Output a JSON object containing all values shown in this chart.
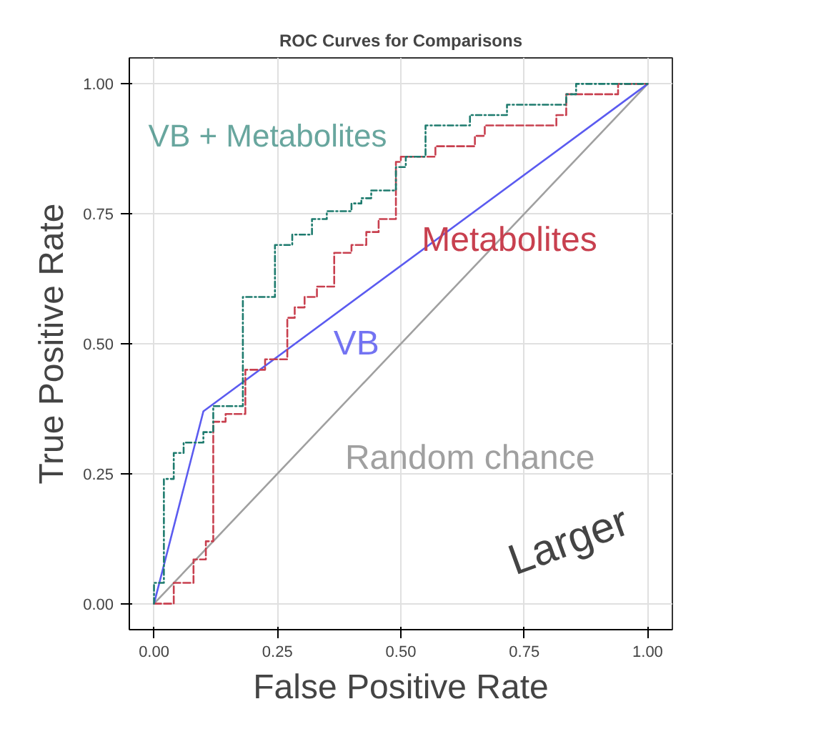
{
  "chart_data": {
    "type": "step",
    "title": "ROC Curves for Comparisons",
    "xlabel": "False Positive Rate",
    "ylabel": "True Positive Rate",
    "xlim": [
      -0.05,
      1.05
    ],
    "ylim": [
      -0.05,
      1.05
    ],
    "xticks": [
      {
        "value": 0,
        "label": "0.00"
      },
      {
        "value": 0.25,
        "label": "0.25"
      },
      {
        "value": 0.5,
        "label": "0.50"
      },
      {
        "value": 0.75,
        "label": "0.75"
      },
      {
        "value": 1,
        "label": "1.00"
      }
    ],
    "yticks": [
      {
        "value": 0,
        "label": "0.00"
      },
      {
        "value": 0.25,
        "label": "0.25"
      },
      {
        "value": 0.5,
        "label": "0.50"
      },
      {
        "value": 0.75,
        "label": "0.75"
      },
      {
        "value": 1,
        "label": "1.00"
      }
    ],
    "grid": true,
    "series": [
      {
        "name": "VB + Metabolites",
        "color": "#1e7b6e",
        "line_style": "dashdot",
        "x": [
          0,
          0,
          0.02,
          0.04,
          0.06,
          0.1,
          0.12,
          0.18,
          0.245,
          0.28,
          0.32,
          0.35,
          0.4,
          0.42,
          0.44,
          0.49,
          0.51,
          0.55,
          0.64,
          0.715,
          0.835,
          0.855,
          1
        ],
        "values": [
          0,
          0.04,
          0.24,
          0.29,
          0.31,
          0.33,
          0.38,
          0.59,
          0.69,
          0.71,
          0.74,
          0.755,
          0.77,
          0.78,
          0.795,
          0.84,
          0.86,
          0.92,
          0.94,
          0.96,
          0.98,
          1,
          1
        ]
      },
      {
        "name": "Metabolites",
        "color": "#c8404f",
        "line_style": "dashed",
        "x": [
          0,
          0.04,
          0.08,
          0.105,
          0.12,
          0.145,
          0.185,
          0.225,
          0.27,
          0.285,
          0.305,
          0.33,
          0.365,
          0.4,
          0.43,
          0.455,
          0.49,
          0.5,
          0.57,
          0.65,
          0.67,
          0.815,
          0.835,
          0.94,
          1
        ],
        "values": [
          0,
          0.04,
          0.085,
          0.12,
          0.35,
          0.365,
          0.45,
          0.47,
          0.55,
          0.57,
          0.59,
          0.61,
          0.675,
          0.69,
          0.715,
          0.74,
          0.85,
          0.86,
          0.88,
          0.9,
          0.92,
          0.94,
          0.98,
          1,
          1
        ]
      },
      {
        "name": "VB",
        "type": "line",
        "color": "#5b5bf0",
        "line_style": "solid",
        "x": [
          0,
          0.1,
          1
        ],
        "values": [
          0,
          0.37,
          1
        ]
      },
      {
        "name": "Random chance",
        "type": "line",
        "color": "#a0a0a0",
        "line_style": "solid",
        "x": [
          0,
          1
        ],
        "values": [
          0,
          1
        ]
      }
    ],
    "annotations": [
      "Larger"
    ]
  }
}
